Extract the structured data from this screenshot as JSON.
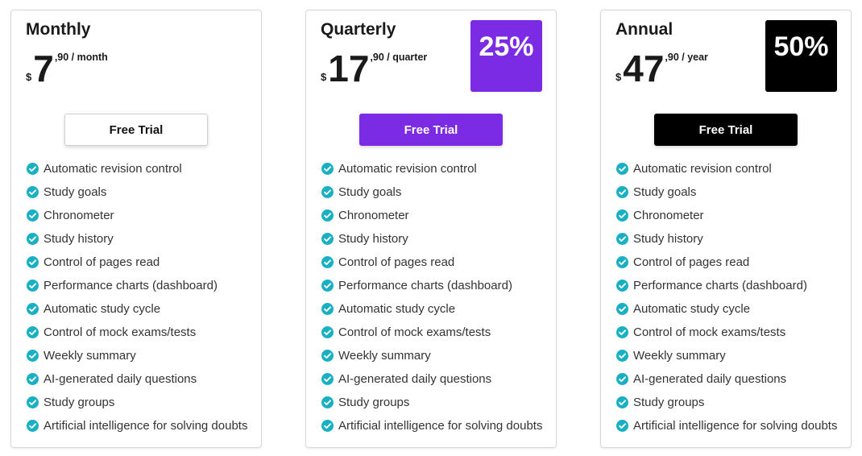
{
  "plans": [
    {
      "name": "Monthly",
      "currency": "$",
      "price": "7",
      "cents": ",90 / month",
      "badge": null,
      "badge_color": null,
      "button": "Free Trial",
      "button_color": "#ffffff",
      "button_text_color": "#111111",
      "features": [
        "Automatic revision control",
        "Study goals",
        "Chronometer",
        "Study history",
        "Control of pages read",
        "Performance charts (dashboard)",
        "Automatic study cycle",
        "Control of mock exams/tests",
        "Weekly summary",
        "AI-generated daily questions",
        "Study groups",
        "Artificial intelligence for solving doubts"
      ]
    },
    {
      "name": "Quarterly",
      "currency": "$",
      "price": "17",
      "cents": ",90 / quarter",
      "badge": "25%",
      "badge_color": "#7b2be3",
      "button": "Free Trial",
      "button_color": "#7b2be3",
      "button_text_color": "#ffffff",
      "features": [
        "Automatic revision control",
        "Study goals",
        "Chronometer",
        "Study history",
        "Control of pages read",
        "Performance charts (dashboard)",
        "Automatic study cycle",
        "Control of mock exams/tests",
        "Weekly summary",
        "AI-generated daily questions",
        "Study groups",
        "Artificial intelligence for solving doubts"
      ]
    },
    {
      "name": "Annual",
      "currency": "$",
      "price": "47",
      "cents": ",90 / year",
      "badge": "50%",
      "badge_color": "#000000",
      "button": "Free Trial",
      "button_color": "#000000",
      "button_text_color": "#ffffff",
      "features": [
        "Automatic revision control",
        "Study goals",
        "Chronometer",
        "Study history",
        "Control of pages read",
        "Performance charts (dashboard)",
        "Automatic study cycle",
        "Control of mock exams/tests",
        "Weekly summary",
        "AI-generated daily questions",
        "Study groups",
        "Artificial intelligence for solving doubts"
      ]
    }
  ]
}
